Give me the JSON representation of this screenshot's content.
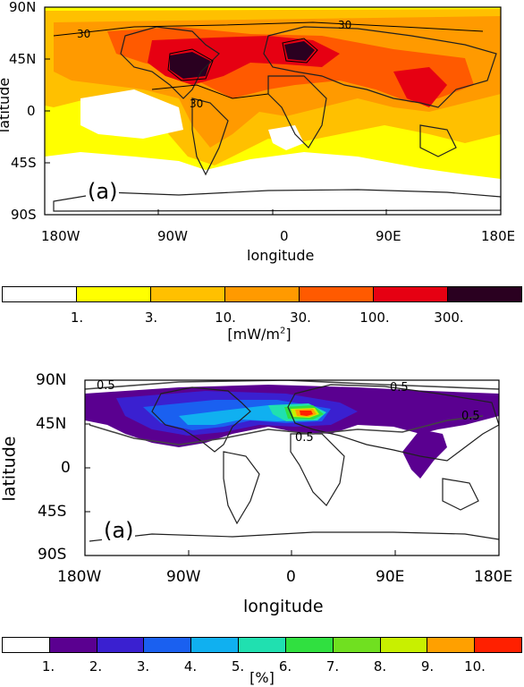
{
  "panel1": {
    "tag": "(a)",
    "ylabel": "latitude",
    "xlabel": "longitude",
    "lat_ticks": [
      "90N",
      "45N",
      "0",
      "45S",
      "90S"
    ],
    "lon_ticks": [
      "180W",
      "90W",
      "0",
      "90E",
      "180E"
    ],
    "contour_labels": [
      "30",
      "30",
      "30"
    ]
  },
  "colorbar1": {
    "colors": [
      "#ffffff",
      "#ffff00",
      "#ffc000",
      "#ff9a00",
      "#ff5a00",
      "#e60012",
      "#2a0020"
    ],
    "ticks": [
      "1.",
      "3.",
      "10.",
      "30.",
      "100.",
      "300."
    ],
    "unit": "[mW/m",
    "unit_sup": "2",
    "unit_end": "]"
  },
  "panel2": {
    "tag": "(a)",
    "ylabel": "latitude",
    "xlabel": "longitude",
    "lat_ticks": [
      "90N",
      "45N",
      "0",
      "45S",
      "90S"
    ],
    "lon_ticks": [
      "180W",
      "90W",
      "0",
      "90E",
      "180E"
    ],
    "contour_labels": [
      "0.5",
      "0.5",
      "0.5",
      "0.5"
    ]
  },
  "colorbar2": {
    "colors": [
      "#ffffff",
      "#5a0090",
      "#3a20d0",
      "#1a60f0",
      "#10b0f0",
      "#20e0b0",
      "#30e040",
      "#70e020",
      "#c8f000",
      "#ffa000",
      "#ff2000"
    ],
    "ticks": [
      "1.",
      "2.",
      "3.",
      "4.",
      "5.",
      "6.",
      "7.",
      "8.",
      "9.",
      "10."
    ],
    "unit": "[%]"
  }
}
